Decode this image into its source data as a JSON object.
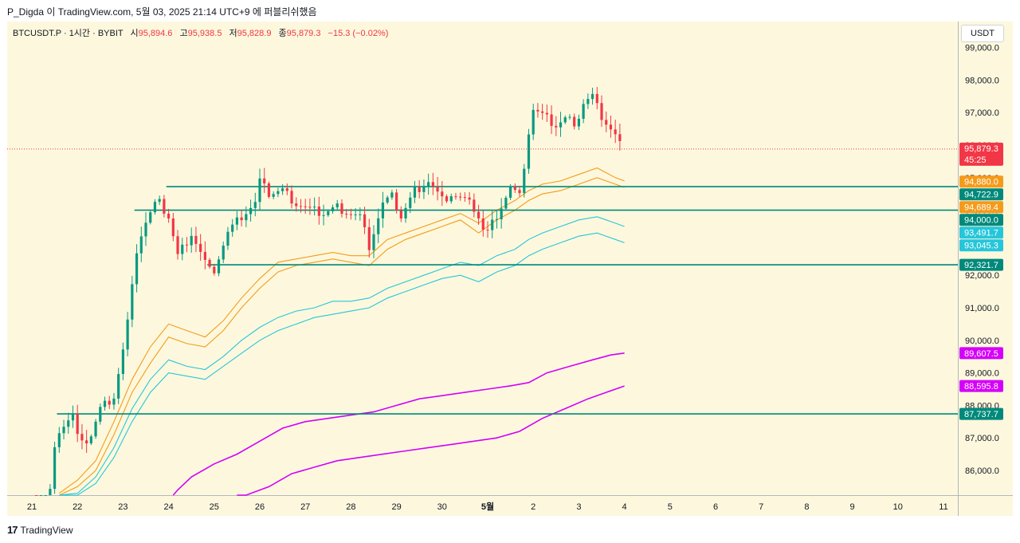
{
  "header": {
    "caption": "P_Digda 이 TradingView.com, 5월 03, 2025 21:14 UTC+9 에 퍼블리쉬했음"
  },
  "legend": {
    "symbol": "BTCUSDT.P · 1시간 · BYBIT",
    "open_label": "시",
    "open": "95,894.6",
    "high_label": "고",
    "high": "95,938.5",
    "low_label": "저",
    "low": "95,828.9",
    "close_label": "종",
    "close": "95,879.3",
    "change": "−15.3 (−0.02%)"
  },
  "currency_button": "USDT",
  "countdown": "45:25",
  "footer": {
    "brand": "TradingView",
    "logo_icon": "tradingview-logo-icon"
  },
  "colors": {
    "background": "#fdf8dd",
    "up": "#089981",
    "down": "#f23645",
    "orange": "#f59b1a",
    "cyan": "#26c6da",
    "magenta": "#d500f9",
    "level": "#00897b"
  },
  "chart_data": {
    "type": "candlestick",
    "timeframe": "1h",
    "ylim": [
      85000,
      100200
    ],
    "y_ticks": [
      "86,000.0",
      "87,000.0",
      "88,000.0",
      "89,000.0",
      "90,000.0",
      "91,000.0",
      "92,000.0",
      "93,000.0",
      "94,000.0",
      "95,000.0",
      "96,000.0",
      "97,000.0",
      "98,000.0",
      "99,000.0"
    ],
    "y_tick_values": [
      86000,
      87000,
      88000,
      89000,
      90000,
      91000,
      92000,
      93000,
      94000,
      95000,
      96000,
      97000,
      98000,
      99000
    ],
    "x_ticks": [
      "21",
      "22",
      "23",
      "24",
      "25",
      "26",
      "27",
      "28",
      "29",
      "30",
      "5월",
      "2",
      "3",
      "4",
      "5",
      "6",
      "7",
      "8",
      "9",
      "10",
      "11"
    ],
    "x_tick_days": [
      0,
      1,
      2,
      3,
      4,
      5,
      6,
      7,
      8,
      9,
      10,
      11,
      12,
      13,
      14,
      15,
      16,
      17,
      18,
      19,
      20
    ],
    "last_price": 95879.3,
    "last_price_label": "95,879.3",
    "price_path": [
      [
        0.0,
        84700
      ],
      [
        0.35,
        84750
      ],
      [
        0.55,
        87200
      ],
      [
        0.9,
        87700
      ],
      [
        1.05,
        86700
      ],
      [
        1.3,
        87100
      ],
      [
        1.5,
        87900
      ],
      [
        1.8,
        88300
      ],
      [
        2.0,
        89700
      ],
      [
        2.15,
        91000
      ],
      [
        2.3,
        92800
      ],
      [
        2.45,
        93500
      ],
      [
        2.75,
        94300
      ],
      [
        3.0,
        93800
      ],
      [
        3.2,
        92600
      ],
      [
        3.5,
        93300
      ],
      [
        3.8,
        92400
      ],
      [
        3.95,
        92000
      ],
      [
        4.3,
        93300
      ],
      [
        4.6,
        93800
      ],
      [
        4.9,
        94200
      ],
      [
        5.05,
        95200
      ],
      [
        5.2,
        94500
      ],
      [
        5.5,
        94600
      ],
      [
        5.8,
        94200
      ],
      [
        6.1,
        94000
      ],
      [
        6.4,
        93900
      ],
      [
        6.7,
        94100
      ],
      [
        7.0,
        93900
      ],
      [
        7.2,
        93800
      ],
      [
        7.4,
        92900
      ],
      [
        7.7,
        94200
      ],
      [
        7.9,
        94400
      ],
      [
        8.1,
        93800
      ],
      [
        8.4,
        94600
      ],
      [
        8.7,
        94900
      ],
      [
        9.0,
        94300
      ],
      [
        9.2,
        94500
      ],
      [
        9.5,
        94300
      ],
      [
        9.75,
        94000
      ],
      [
        9.95,
        93200
      ],
      [
        10.25,
        94000
      ],
      [
        10.5,
        94700
      ],
      [
        10.7,
        94400
      ],
      [
        10.9,
        96400
      ],
      [
        11.0,
        97100
      ],
      [
        11.3,
        96800
      ],
      [
        11.5,
        96600
      ],
      [
        11.7,
        96800
      ],
      [
        11.95,
        96700
      ],
      [
        12.1,
        97300
      ],
      [
        12.3,
        97500
      ],
      [
        12.45,
        97000
      ],
      [
        12.6,
        96700
      ],
      [
        12.8,
        96300
      ],
      [
        12.95,
        95900
      ]
    ],
    "horizontal_levels": [
      {
        "price": 94722.9,
        "label": "94,722.9",
        "from_day": 2.95
      },
      {
        "price": 94000.0,
        "label": "94,000.0",
        "from_day": 2.25
      },
      {
        "price": 92321.7,
        "label": "92,321.7",
        "from_day": 3.85
      },
      {
        "price": 87737.7,
        "label": "87,737.7",
        "from_day": 0.55
      }
    ],
    "series": [
      {
        "color": "orange",
        "last": 94880.0,
        "label": "94,880.0",
        "points": [
          [
            0.6,
            85300
          ],
          [
            1.0,
            85700
          ],
          [
            1.4,
            86300
          ],
          [
            1.8,
            87500
          ],
          [
            2.2,
            88800
          ],
          [
            2.6,
            89800
          ],
          [
            3.0,
            90500
          ],
          [
            3.4,
            90300
          ],
          [
            3.8,
            90100
          ],
          [
            4.2,
            90600
          ],
          [
            4.6,
            91300
          ],
          [
            5.0,
            91900
          ],
          [
            5.4,
            92400
          ],
          [
            5.8,
            92500
          ],
          [
            6.2,
            92600
          ],
          [
            6.6,
            92700
          ],
          [
            7.0,
            92600
          ],
          [
            7.4,
            92600
          ],
          [
            7.8,
            93100
          ],
          [
            8.2,
            93300
          ],
          [
            8.6,
            93500
          ],
          [
            9.0,
            93700
          ],
          [
            9.4,
            93900
          ],
          [
            9.8,
            93600
          ],
          [
            10.2,
            94000
          ],
          [
            10.6,
            94300
          ],
          [
            10.9,
            94600
          ],
          [
            11.2,
            94800
          ],
          [
            11.6,
            94900
          ],
          [
            12.0,
            95100
          ],
          [
            12.4,
            95300
          ],
          [
            12.8,
            95000
          ],
          [
            13.0,
            94900
          ]
        ]
      },
      {
        "color": "orange",
        "last": 94689.4,
        "label": "94,689.4",
        "points": [
          [
            0.6,
            85200
          ],
          [
            1.0,
            85500
          ],
          [
            1.4,
            86000
          ],
          [
            1.8,
            87100
          ],
          [
            2.2,
            88400
          ],
          [
            2.6,
            89300
          ],
          [
            3.0,
            90100
          ],
          [
            3.4,
            89900
          ],
          [
            3.8,
            89800
          ],
          [
            4.2,
            90300
          ],
          [
            4.6,
            91000
          ],
          [
            5.0,
            91600
          ],
          [
            5.4,
            92100
          ],
          [
            5.8,
            92300
          ],
          [
            6.2,
            92400
          ],
          [
            6.6,
            92500
          ],
          [
            7.0,
            92400
          ],
          [
            7.4,
            92300
          ],
          [
            7.8,
            92800
          ],
          [
            8.2,
            93100
          ],
          [
            8.6,
            93300
          ],
          [
            9.0,
            93500
          ],
          [
            9.4,
            93700
          ],
          [
            9.8,
            93300
          ],
          [
            10.2,
            93700
          ],
          [
            10.6,
            94000
          ],
          [
            10.9,
            94300
          ],
          [
            11.2,
            94500
          ],
          [
            11.6,
            94600
          ],
          [
            12.0,
            94800
          ],
          [
            12.4,
            95000
          ],
          [
            12.8,
            94800
          ],
          [
            13.0,
            94700
          ]
        ]
      },
      {
        "color": "cyan",
        "last": 93491.7,
        "label": "93,491.7",
        "points": [
          [
            0.6,
            85000
          ],
          [
            1.0,
            85300
          ],
          [
            1.4,
            85800
          ],
          [
            1.8,
            86700
          ],
          [
            2.2,
            87900
          ],
          [
            2.6,
            88800
          ],
          [
            3.0,
            89400
          ],
          [
            3.4,
            89200
          ],
          [
            3.8,
            89100
          ],
          [
            4.2,
            89500
          ],
          [
            4.6,
            90000
          ],
          [
            5.0,
            90400
          ],
          [
            5.4,
            90700
          ],
          [
            5.8,
            90900
          ],
          [
            6.2,
            91000
          ],
          [
            6.6,
            91200
          ],
          [
            7.0,
            91200
          ],
          [
            7.4,
            91300
          ],
          [
            7.8,
            91600
          ],
          [
            8.2,
            91800
          ],
          [
            8.6,
            92000
          ],
          [
            9.0,
            92200
          ],
          [
            9.4,
            92400
          ],
          [
            9.8,
            92300
          ],
          [
            10.2,
            92600
          ],
          [
            10.6,
            92800
          ],
          [
            10.9,
            93100
          ],
          [
            11.2,
            93300
          ],
          [
            11.6,
            93500
          ],
          [
            12.0,
            93700
          ],
          [
            12.4,
            93800
          ],
          [
            12.8,
            93600
          ],
          [
            13.0,
            93500
          ]
        ]
      },
      {
        "color": "cyan",
        "last": 93045.3,
        "label": "93,045.3",
        "points": [
          [
            0.6,
            84900
          ],
          [
            1.0,
            85200
          ],
          [
            1.4,
            85600
          ],
          [
            1.8,
            86400
          ],
          [
            2.2,
            87500
          ],
          [
            2.6,
            88400
          ],
          [
            3.0,
            89000
          ],
          [
            3.4,
            88900
          ],
          [
            3.8,
            88800
          ],
          [
            4.2,
            89200
          ],
          [
            4.6,
            89600
          ],
          [
            5.0,
            90000
          ],
          [
            5.4,
            90300
          ],
          [
            5.8,
            90500
          ],
          [
            6.2,
            90700
          ],
          [
            6.6,
            90800
          ],
          [
            7.0,
            90900
          ],
          [
            7.4,
            91000
          ],
          [
            7.8,
            91300
          ],
          [
            8.2,
            91500
          ],
          [
            8.6,
            91700
          ],
          [
            9.0,
            91900
          ],
          [
            9.4,
            92000
          ],
          [
            9.8,
            91800
          ],
          [
            10.2,
            92100
          ],
          [
            10.6,
            92300
          ],
          [
            10.9,
            92600
          ],
          [
            11.2,
            92800
          ],
          [
            11.6,
            93000
          ],
          [
            12.0,
            93200
          ],
          [
            12.4,
            93300
          ],
          [
            12.8,
            93100
          ],
          [
            13.0,
            93000
          ]
        ]
      },
      {
        "color": "magenta",
        "last": 89607.5,
        "label": "89,607.5",
        "points": [
          [
            3.1,
            85000
          ],
          [
            3.2,
            85400
          ],
          [
            3.5,
            85800
          ],
          [
            4.0,
            86200
          ],
          [
            4.5,
            86500
          ],
          [
            5.0,
            86900
          ],
          [
            5.5,
            87300
          ],
          [
            6.0,
            87500
          ],
          [
            6.5,
            87600
          ],
          [
            7.0,
            87700
          ],
          [
            7.5,
            87800
          ],
          [
            8.0,
            88000
          ],
          [
            8.5,
            88200
          ],
          [
            9.0,
            88300
          ],
          [
            9.5,
            88400
          ],
          [
            10.0,
            88500
          ],
          [
            10.5,
            88600
          ],
          [
            10.9,
            88700
          ],
          [
            11.3,
            89000
          ],
          [
            11.8,
            89200
          ],
          [
            12.3,
            89400
          ],
          [
            12.7,
            89550
          ],
          [
            13.0,
            89607
          ]
        ]
      },
      {
        "color": "magenta",
        "last": 88595.8,
        "label": "88,595.8",
        "points": [
          [
            4.5,
            85000
          ],
          [
            4.7,
            85200
          ],
          [
            5.2,
            85500
          ],
          [
            5.7,
            85900
          ],
          [
            6.2,
            86100
          ],
          [
            6.7,
            86300
          ],
          [
            7.2,
            86400
          ],
          [
            7.7,
            86500
          ],
          [
            8.2,
            86600
          ],
          [
            8.7,
            86700
          ],
          [
            9.2,
            86800
          ],
          [
            9.7,
            86900
          ],
          [
            10.2,
            87000
          ],
          [
            10.7,
            87200
          ],
          [
            11.2,
            87600
          ],
          [
            11.7,
            87900
          ],
          [
            12.2,
            88200
          ],
          [
            12.6,
            88400
          ],
          [
            13.0,
            88596
          ]
        ]
      }
    ]
  }
}
